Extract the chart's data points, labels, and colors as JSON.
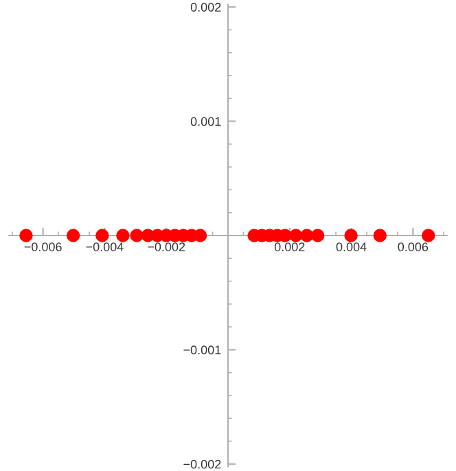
{
  "chart_data": {
    "type": "scatter",
    "marker": "circle",
    "x": [
      -0.00655,
      -0.00502,
      -0.00408,
      -0.00341,
      -0.00296,
      -0.0026,
      -0.00229,
      -0.002,
      -0.00172,
      -0.00145,
      -0.00118,
      -0.0009,
      0.00085,
      0.0011,
      0.00135,
      0.0016,
      0.00185,
      0.0022,
      0.00256,
      0.00291,
      0.00399,
      0.00493,
      0.0065
    ],
    "series": [
      {
        "color": "#ff0000",
        "values": [
          0,
          0,
          0,
          0,
          0,
          0,
          0,
          0,
          0,
          0,
          0,
          0,
          0,
          0,
          0,
          0,
          0,
          0,
          0,
          0,
          0,
          0,
          0
        ]
      }
    ],
    "xlim": [
      -0.0071,
      0.0071
    ],
    "ylim": [
      -0.00202,
      0.00202
    ],
    "xticks": [
      {
        "value": -0.006,
        "label": "−0.006"
      },
      {
        "value": -0.004,
        "label": "−0.004"
      },
      {
        "value": -0.002,
        "label": "−0.002"
      },
      0.002,
      0.004,
      0.006
    ],
    "yticks": [
      {
        "value": -0.002,
        "label": "−0.002"
      },
      {
        "value": -0.001,
        "label": "−0.001"
      },
      0.001,
      0.002
    ],
    "grid": false
  }
}
